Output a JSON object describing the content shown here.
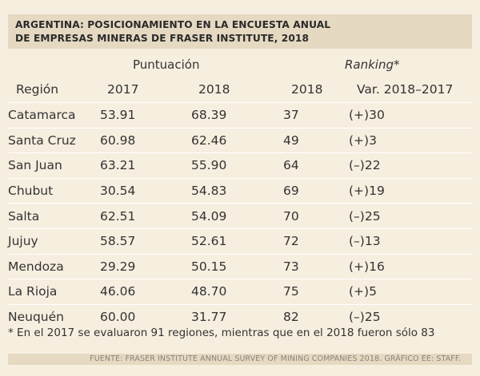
{
  "title": {
    "line1": "ARGENTINA: POSICIONAMIENTO EN LA ENCUESTA ANUAL",
    "line2": "DE EMPRESAS MINERAS DE FRASER INSTITUTE, 2018"
  },
  "groups": {
    "score": "Puntuación",
    "rank": "Ranking*"
  },
  "headers": [
    "Región",
    "2017",
    "2018",
    "2018",
    "Var. 2018–2017"
  ],
  "note": "* En el 2017 se evaluaron 91 regiones, mientras que en el 2018 fueron sólo 83",
  "source": "FUENTE: FRASER INSTITUTE ANNUAL SURVEY OF MINING COMPANIES 2018. GRÁFICO EE: STAFF.",
  "colors": {
    "background": "#f6eedf",
    "band": "#e6d9c2",
    "rule": "#ffffff"
  },
  "chart_data": {
    "type": "table",
    "title": "ARGENTINA: POSICIONAMIENTO EN LA ENCUESTA ANUAL DE EMPRESAS MINERAS DE FRASER INSTITUTE, 2018",
    "columns": [
      "Región",
      "Puntuación 2017",
      "Puntuación 2018",
      "Ranking 2018",
      "Var. 2018–2017"
    ],
    "rows": [
      [
        "Catamarca",
        "53.91",
        "68.39",
        "37",
        "(+)30"
      ],
      [
        "Santa Cruz",
        "60.98",
        "62.46",
        "49",
        "(+)3"
      ],
      [
        "San Juan",
        "63.21",
        "55.90",
        "64",
        "(–)22"
      ],
      [
        "Chubut",
        "30.54",
        "54.83",
        "69",
        "(+)19"
      ],
      [
        "Salta",
        "62.51",
        "54.09",
        "70",
        "(–)25"
      ],
      [
        "Jujuy",
        "58.57",
        "52.61",
        "72",
        "(–)13"
      ],
      [
        "Mendoza",
        "29.29",
        "50.15",
        "73",
        "(+)16"
      ],
      [
        "La Rioja",
        "46.06",
        "48.70",
        "75",
        "(+)5"
      ],
      [
        "Neuquén",
        "60.00",
        "31.77",
        "82",
        "(–)25"
      ]
    ]
  }
}
